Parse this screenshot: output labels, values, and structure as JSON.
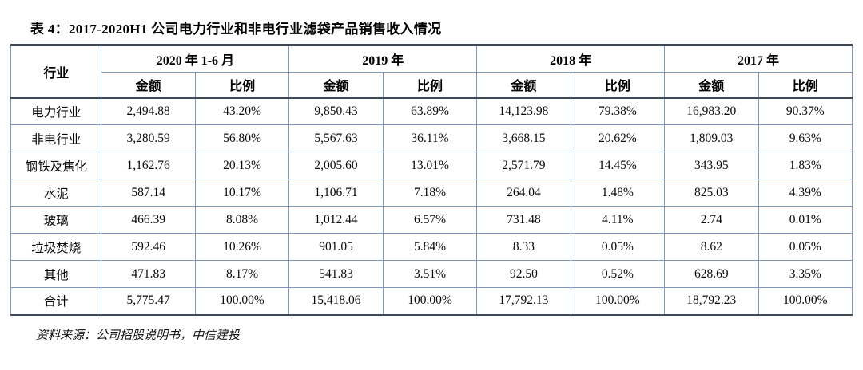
{
  "title": "表 4：2017-2020H1 公司电力行业和非电行业滤袋产品销售收入情况",
  "source": "资料来源：公司招股说明书，中信建投",
  "colors": {
    "rule_dark": "#3e4a58",
    "grid_blue": "#7e96c2"
  },
  "table": {
    "industry_header": "行业",
    "sub_headers": {
      "amount": "金额",
      "ratio": "比例"
    },
    "year_groups": [
      "2020 年 1-6 月",
      "2019 年",
      "2018 年",
      "2017 年"
    ],
    "rows": [
      {
        "industry": "电力行业",
        "values": [
          "2,494.88",
          "43.20%",
          "9,850.43",
          "63.89%",
          "14,123.98",
          "79.38%",
          "16,983.20",
          "90.37%"
        ]
      },
      {
        "industry": "非电行业",
        "values": [
          "3,280.59",
          "56.80%",
          "5,567.63",
          "36.11%",
          "3,668.15",
          "20.62%",
          "1,809.03",
          "9.63%"
        ]
      },
      {
        "industry": "钢铁及焦化",
        "values": [
          "1,162.76",
          "20.13%",
          "2,005.60",
          "13.01%",
          "2,571.79",
          "14.45%",
          "343.95",
          "1.83%"
        ]
      },
      {
        "industry": "水泥",
        "values": [
          "587.14",
          "10.17%",
          "1,106.71",
          "7.18%",
          "264.04",
          "1.48%",
          "825.03",
          "4.39%"
        ]
      },
      {
        "industry": "玻璃",
        "values": [
          "466.39",
          "8.08%",
          "1,012.44",
          "6.57%",
          "731.48",
          "4.11%",
          "2.74",
          "0.01%"
        ]
      },
      {
        "industry": "垃圾焚烧",
        "values": [
          "592.46",
          "10.26%",
          "901.05",
          "5.84%",
          "8.33",
          "0.05%",
          "8.62",
          "0.05%"
        ]
      },
      {
        "industry": "其他",
        "values": [
          "471.83",
          "8.17%",
          "541.83",
          "3.51%",
          "92.50",
          "0.52%",
          "628.69",
          "3.35%"
        ]
      },
      {
        "industry": "合计",
        "values": [
          "5,775.47",
          "100.00%",
          "15,418.06",
          "100.00%",
          "17,792.13",
          "100.00%",
          "18,792.23",
          "100.00%"
        ]
      }
    ]
  }
}
